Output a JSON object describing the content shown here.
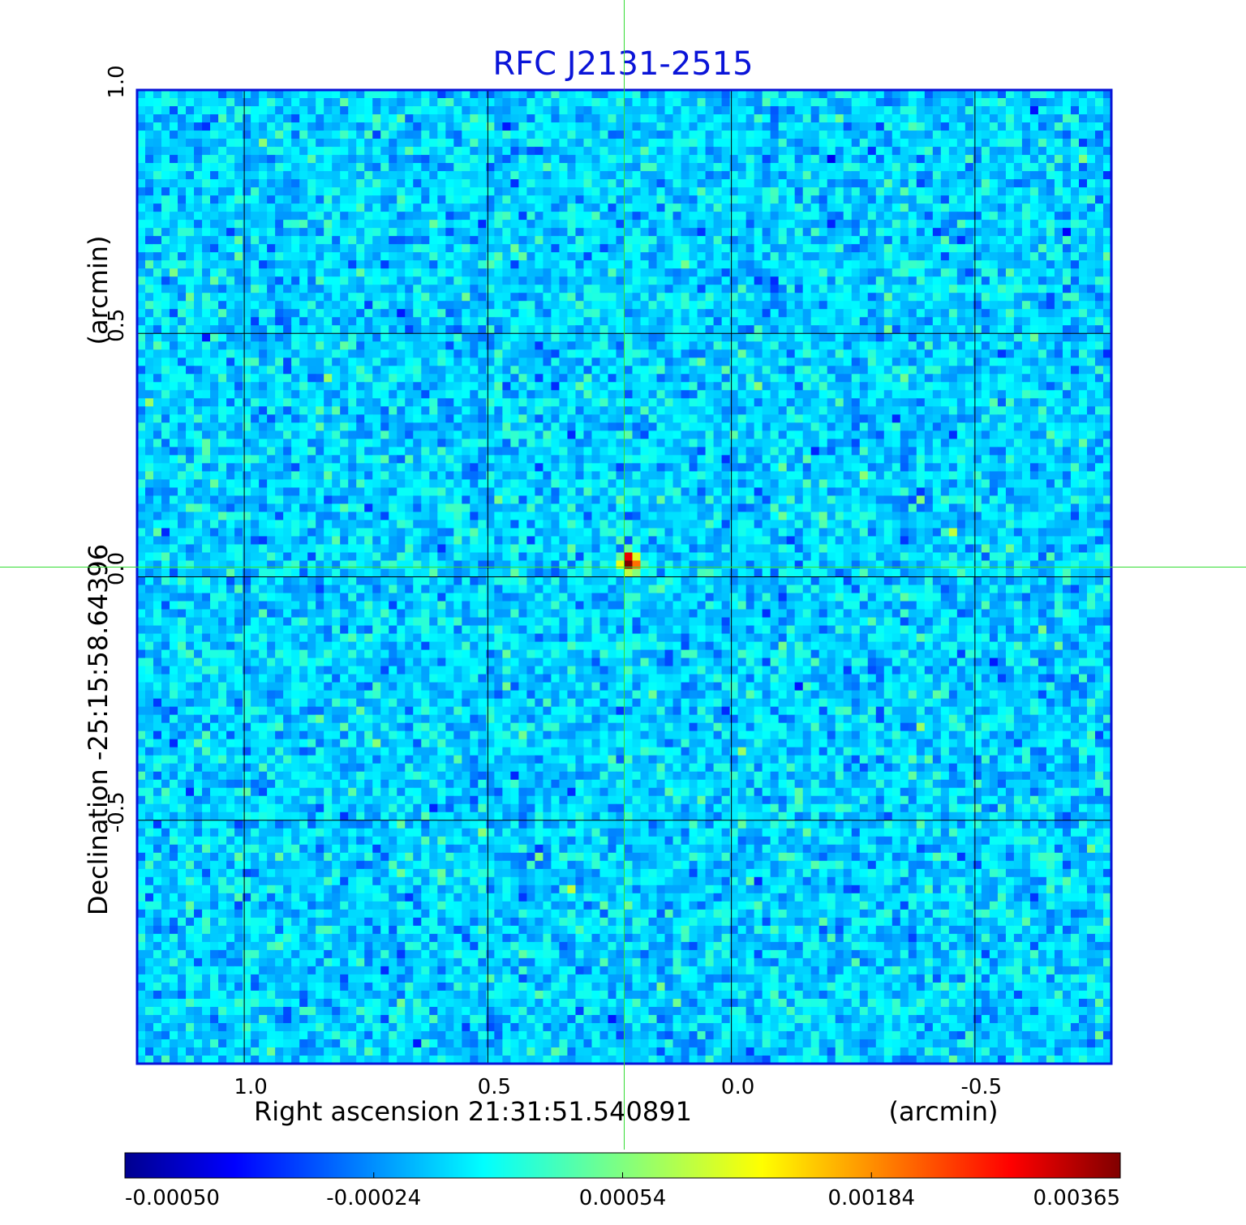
{
  "chart_data": {
    "type": "heatmap",
    "title": "RFC J2131-2515",
    "xlabel": "Right ascension  21:31:51.540891",
    "xunit": "(arcmin)",
    "ylabel": "Declination  -25:15:58.64396",
    "yunit": "(arcmin)",
    "xlim": [
      1.22,
      -0.78
    ],
    "ylim": [
      -1.0,
      1.0
    ],
    "x_ticks": [
      1.0,
      0.5,
      0.0,
      -0.5
    ],
    "x_tick_labels": [
      "1.0",
      "0.5",
      "0.0",
      "-0.5"
    ],
    "y_ticks": [
      -0.5,
      0.0,
      0.5,
      1.0
    ],
    "y_tick_labels": [
      "-0.5",
      "0.0",
      "0.5",
      "1.0"
    ],
    "grid": true,
    "colormap": "jet",
    "colorbar": {
      "ticks": [
        -0.0005,
        -0.00024,
        0.00054,
        0.00184,
        0.00365
      ],
      "tick_labels": [
        "-0.00050",
        "-0.00024",
        "0.00054",
        "0.00184",
        "0.00365"
      ],
      "range": [
        -0.0005,
        0.00365
      ]
    },
    "source_peak": {
      "x": 0.21,
      "y": 0.03,
      "value": 0.00365
    },
    "crosshair": {
      "x": 0.22,
      "y": 0.02,
      "color": "#33dd33"
    }
  }
}
